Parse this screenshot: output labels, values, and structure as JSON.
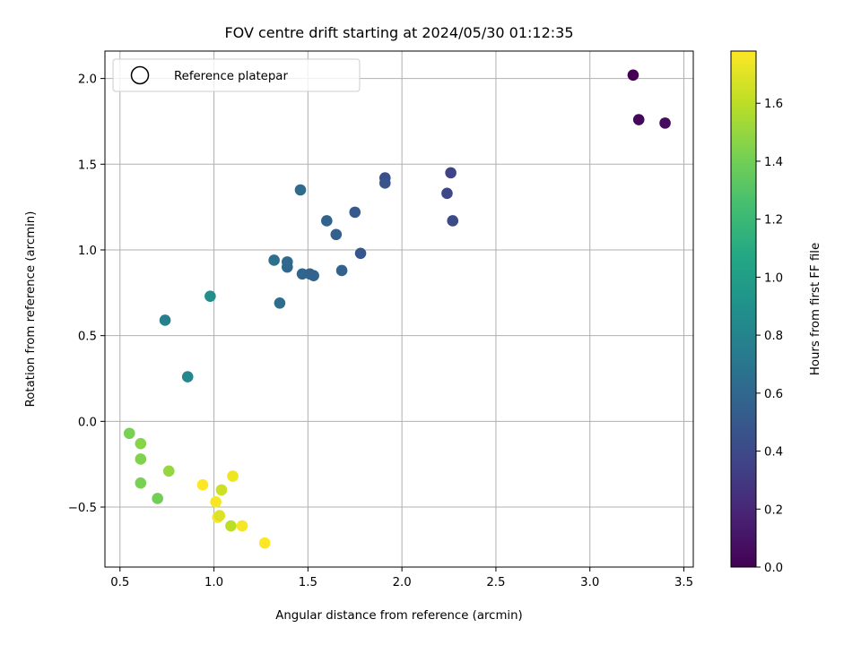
{
  "chart_data": {
    "type": "scatter",
    "title": "FOV centre drift starting at 2024/05/30 01:12:35",
    "xlabel": "Angular distance from reference (arcmin)",
    "ylabel": "Rotation from reference (arcmin)",
    "xlim": [
      0.42,
      3.55
    ],
    "ylim": [
      -0.85,
      2.16
    ],
    "xticks": [
      0.5,
      1.0,
      1.5,
      2.0,
      2.5,
      3.0,
      3.5
    ],
    "xtick_labels": [
      "0.5",
      "1.0",
      "1.5",
      "2.0",
      "2.5",
      "3.0",
      "3.5"
    ],
    "yticks": [
      -0.5,
      0.0,
      0.5,
      1.0,
      1.5,
      2.0
    ],
    "ytick_labels": [
      "−0.5",
      "0.0",
      "0.5",
      "1.0",
      "1.5",
      "2.0"
    ],
    "grid": true,
    "legend": {
      "position": "top-left",
      "entries": [
        "Reference platepar"
      ]
    },
    "colorbar": {
      "label": "Hours from first FF file",
      "colormap": "viridis",
      "range": [
        0.0,
        1.78
      ],
      "ticks": [
        0.0,
        0.2,
        0.4,
        0.6,
        0.8,
        1.0,
        1.2,
        1.4,
        1.6
      ],
      "tick_labels": [
        "0.0",
        "0.2",
        "0.4",
        "0.6",
        "0.8",
        "1.0",
        "1.2",
        "1.4",
        "1.6"
      ]
    },
    "points": [
      {
        "x": 3.23,
        "y": 2.02,
        "c": 0.0
      },
      {
        "x": 3.26,
        "y": 1.76,
        "c": 0.03
      },
      {
        "x": 3.4,
        "y": 1.74,
        "c": 0.05
      },
      {
        "x": 2.26,
        "y": 1.45,
        "c": 0.36
      },
      {
        "x": 2.24,
        "y": 1.33,
        "c": 0.38
      },
      {
        "x": 2.27,
        "y": 1.17,
        "c": 0.4
      },
      {
        "x": 1.91,
        "y": 1.42,
        "c": 0.44
      },
      {
        "x": 1.91,
        "y": 1.39,
        "c": 0.46
      },
      {
        "x": 1.78,
        "y": 0.98,
        "c": 0.49
      },
      {
        "x": 1.75,
        "y": 1.22,
        "c": 0.51
      },
      {
        "x": 1.68,
        "y": 0.88,
        "c": 0.56
      },
      {
        "x": 1.65,
        "y": 1.09,
        "c": 0.55
      },
      {
        "x": 1.6,
        "y": 1.17,
        "c": 0.57
      },
      {
        "x": 1.53,
        "y": 0.85,
        "c": 0.58
      },
      {
        "x": 1.51,
        "y": 0.86,
        "c": 0.57
      },
      {
        "x": 1.47,
        "y": 0.86,
        "c": 0.58
      },
      {
        "x": 1.46,
        "y": 1.35,
        "c": 0.62
      },
      {
        "x": 1.39,
        "y": 0.9,
        "c": 0.6
      },
      {
        "x": 1.39,
        "y": 0.93,
        "c": 0.61
      },
      {
        "x": 1.35,
        "y": 0.69,
        "c": 0.64
      },
      {
        "x": 1.32,
        "y": 0.94,
        "c": 0.66
      },
      {
        "x": 0.98,
        "y": 0.73,
        "c": 0.88
      },
      {
        "x": 0.74,
        "y": 0.59,
        "c": 0.76
      },
      {
        "x": 0.86,
        "y": 0.26,
        "c": 0.82
      },
      {
        "x": 0.55,
        "y": -0.07,
        "c": 1.42
      },
      {
        "x": 0.61,
        "y": -0.13,
        "c": 1.46
      },
      {
        "x": 0.61,
        "y": -0.22,
        "c": 1.44
      },
      {
        "x": 0.61,
        "y": -0.36,
        "c": 1.42
      },
      {
        "x": 0.7,
        "y": -0.45,
        "c": 1.4
      },
      {
        "x": 0.76,
        "y": -0.29,
        "c": 1.5
      },
      {
        "x": 0.94,
        "y": -0.37,
        "c": 1.78
      },
      {
        "x": 1.01,
        "y": -0.47,
        "c": 1.76
      },
      {
        "x": 1.02,
        "y": -0.56,
        "c": 1.77
      },
      {
        "x": 1.03,
        "y": -0.55,
        "c": 1.69
      },
      {
        "x": 1.04,
        "y": -0.4,
        "c": 1.64
      },
      {
        "x": 1.1,
        "y": -0.32,
        "c": 1.74
      },
      {
        "x": 1.09,
        "y": -0.61,
        "c": 1.6
      },
      {
        "x": 1.15,
        "y": -0.61,
        "c": 1.76
      },
      {
        "x": 1.27,
        "y": -0.71,
        "c": 1.78
      }
    ]
  }
}
